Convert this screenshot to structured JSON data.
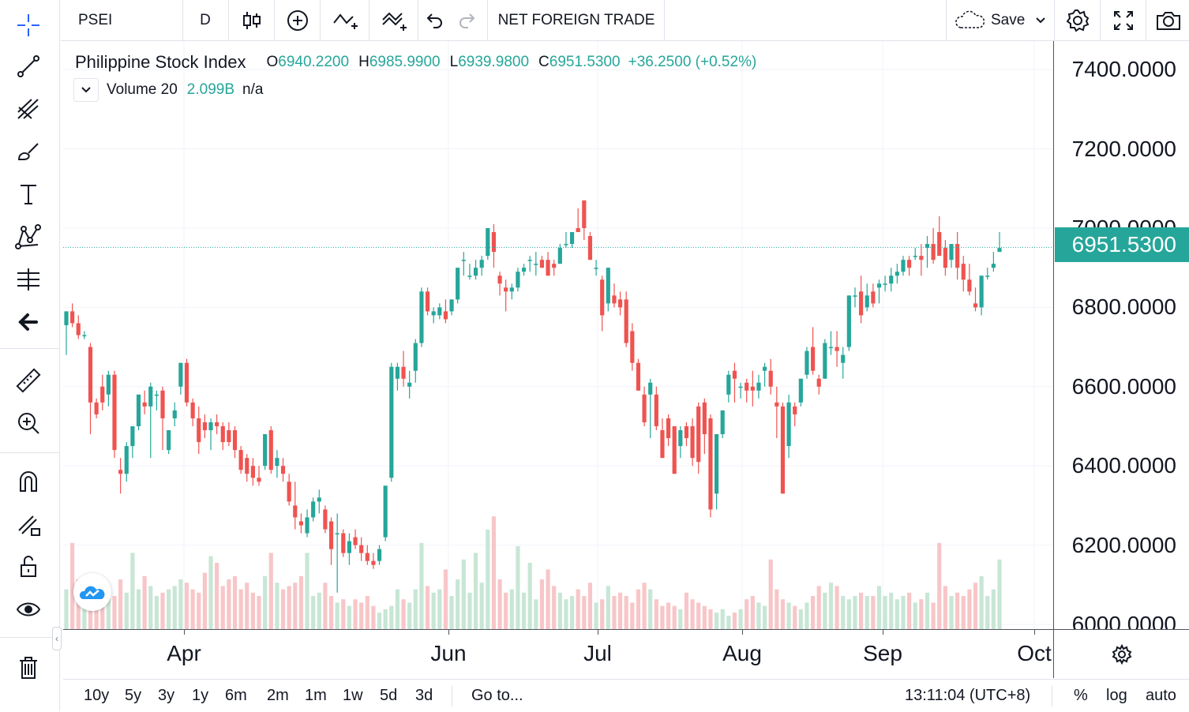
{
  "toolbar": {
    "symbol": "PSEI",
    "interval": "D",
    "indicator_label": "NET FOREIGN TRADE",
    "save_label": "Save"
  },
  "legend": {
    "name": "Philippine Stock Index",
    "o_label": "O",
    "o_value": "6940.2200",
    "h_label": "H",
    "h_value": "6985.9900",
    "l_label": "L",
    "l_value": "6939.9800",
    "c_label": "C",
    "c_value": "6951.5300",
    "change": "+36.2500 (+0.52%)",
    "volume_label": "Volume 20",
    "volume_value": "2.099B",
    "volume_na": "n/a"
  },
  "colors": {
    "up": "#26a69a",
    "down": "#ef5350",
    "up_vol": "#c8e6d5",
    "down_vol": "#f8c6c8"
  },
  "last_price": "6951.5300",
  "bottom_bar": {
    "ranges": [
      "10y",
      "5y",
      "3y",
      "1y",
      "6m",
      "2m",
      "1m",
      "1w",
      "5d",
      "3d"
    ],
    "goto_label": "Go to...",
    "time": "13:11:04 (UTC+8)",
    "pct": "%",
    "log": "log",
    "auto": "auto"
  },
  "chart_data": {
    "type": "candlestick",
    "title": "Philippine Stock Index",
    "y_ticks": [
      "7400.0000",
      "7200.0000",
      "7000.0000",
      "6800.0000",
      "6600.0000",
      "6400.0000",
      "6200.0000",
      "6000.0000"
    ],
    "ylim": [
      5990,
      7450
    ],
    "x_labels": [
      "Apr",
      "Jun",
      "Jul",
      "Aug",
      "Sep",
      "Oct"
    ],
    "last_close_line": 6951.53,
    "candles": [
      [
        6755,
        6790,
        6680,
        6790,
        1.2
      ],
      [
        6790,
        6810,
        6750,
        6760,
        2.6
      ],
      [
        6760,
        6780,
        6720,
        6730,
        1.5
      ],
      [
        6730,
        6740,
        6720,
        6730,
        1.1
      ],
      [
        6700,
        6710,
        6480,
        6560,
        1.4
      ],
      [
        6560,
        6570,
        6520,
        6530,
        1.2
      ],
      [
        6600,
        6630,
        6540,
        6560,
        1.1
      ],
      [
        6580,
        6640,
        6550,
        6630,
        1.3
      ],
      [
        6630,
        6640,
        6420,
        6440,
        1.0
      ],
      [
        6390,
        6420,
        6330,
        6380,
        1.5
      ],
      [
        6380,
        6460,
        6360,
        6450,
        1.1
      ],
      [
        6450,
        6500,
        6420,
        6500,
        2.3
      ],
      [
        6500,
        6580,
        6490,
        6580,
        1.2
      ],
      [
        6560,
        6590,
        6530,
        6550,
        1.6
      ],
      [
        6550,
        6610,
        6420,
        6600,
        1.3
      ],
      [
        6580,
        6590,
        6540,
        6580,
        1.0
      ],
      [
        6590,
        6600,
        6440,
        6520,
        1.1
      ],
      [
        6440,
        6490,
        6430,
        6490,
        1.2
      ],
      [
        6520,
        6560,
        6500,
        6540,
        1.3
      ],
      [
        6600,
        6660,
        6580,
        6660,
        1.5
      ],
      [
        6660,
        6670,
        6550,
        6560,
        1.4
      ],
      [
        6560,
        6570,
        6500,
        6520,
        1.2
      ],
      [
        6520,
        6550,
        6430,
        6460,
        1.1
      ],
      [
        6510,
        6530,
        6470,
        6490,
        1.7
      ],
      [
        6490,
        6520,
        6440,
        6510,
        2.2
      ],
      [
        6510,
        6530,
        6480,
        6500,
        2.0
      ],
      [
        6500,
        6510,
        6440,
        6460,
        1.3
      ],
      [
        6490,
        6510,
        6450,
        6460,
        1.5
      ],
      [
        6490,
        6500,
        6420,
        6440,
        1.6
      ],
      [
        6440,
        6450,
        6380,
        6390,
        1.2
      ],
      [
        6420,
        6430,
        6360,
        6380,
        1.4
      ],
      [
        6400,
        6420,
        6350,
        6370,
        1.1
      ],
      [
        6370,
        6400,
        6350,
        6360,
        1.0
      ],
      [
        6400,
        6480,
        6390,
        6480,
        1.6
      ],
      [
        6490,
        6500,
        6380,
        6390,
        2.3
      ],
      [
        6400,
        6440,
        6370,
        6420,
        1.4
      ],
      [
        6400,
        6420,
        6360,
        6380,
        1.2
      ],
      [
        6360,
        6380,
        6300,
        6310,
        1.3
      ],
      [
        6300,
        6360,
        6240,
        6270,
        1.4
      ],
      [
        6260,
        6280,
        6230,
        6250,
        1.6
      ],
      [
        6230,
        6290,
        6220,
        6270,
        2.3
      ],
      [
        6270,
        6320,
        6260,
        6310,
        1.0
      ],
      [
        6310,
        6340,
        6280,
        6320,
        1.1
      ],
      [
        6290,
        6300,
        6230,
        6240,
        1.4
      ],
      [
        6260,
        6270,
        6150,
        6190,
        1.0
      ],
      [
        6230,
        6280,
        6080,
        6230,
        0.8
      ],
      [
        6230,
        6240,
        6170,
        6180,
        0.9
      ],
      [
        6180,
        6230,
        6150,
        6210,
        0.7
      ],
      [
        6220,
        6240,
        6190,
        6200,
        0.9
      ],
      [
        6200,
        6220,
        6160,
        6180,
        0.8
      ],
      [
        6180,
        6200,
        6150,
        6160,
        1.0
      ],
      [
        6160,
        6180,
        6140,
        6150,
        0.7
      ],
      [
        6160,
        6200,
        6150,
        6190,
        0.5
      ],
      [
        6220,
        6350,
        6210,
        6350,
        0.6
      ],
      [
        6370,
        6660,
        6360,
        6650,
        0.7
      ],
      [
        6620,
        6660,
        6590,
        6650,
        1.2
      ],
      [
        6650,
        6690,
        6600,
        6620,
        0.9
      ],
      [
        6600,
        6640,
        6570,
        6610,
        0.8
      ],
      [
        6640,
        6720,
        6610,
        6710,
        1.2
      ],
      [
        6710,
        6850,
        6700,
        6840,
        2.6
      ],
      [
        6840,
        6850,
        6780,
        6790,
        1.3
      ],
      [
        6780,
        6800,
        6760,
        6790,
        1.1
      ],
      [
        6780,
        6810,
        6770,
        6800,
        1.2
      ],
      [
        6790,
        6820,
        6760,
        6770,
        1.8
      ],
      [
        6790,
        6820,
        6780,
        6820,
        1.0
      ],
      [
        6820,
        6900,
        6810,
        6900,
        1.5
      ],
      [
        6920,
        6940,
        6880,
        6920,
        2.1
      ],
      [
        6880,
        6910,
        6870,
        6880,
        1.1
      ],
      [
        6880,
        6920,
        6870,
        6900,
        2.3
      ],
      [
        6900,
        6930,
        6880,
        6920,
        1.4
      ],
      [
        6930,
        7000,
        6920,
        7000,
        3.0
      ],
      [
        6990,
        7010,
        6900,
        6940,
        3.4
      ],
      [
        6880,
        6890,
        6830,
        6860,
        1.5
      ],
      [
        6850,
        6870,
        6790,
        6840,
        1.1
      ],
      [
        6840,
        6860,
        6820,
        6850,
        1.2
      ],
      [
        6850,
        6900,
        6840,
        6890,
        2.5
      ],
      [
        6890,
        6910,
        6880,
        6900,
        1.1
      ],
      [
        6920,
        6930,
        6890,
        6920,
        2.0
      ],
      [
        6910,
        6940,
        6880,
        6910,
        0.9
      ],
      [
        6920,
        6930,
        6900,
        6900,
        1.5
      ],
      [
        6920,
        6940,
        6880,
        6880,
        1.8
      ],
      [
        6910,
        6920,
        6880,
        6900,
        1.3
      ],
      [
        6910,
        6960,
        6910,
        6950,
        1.1
      ],
      [
        6960,
        6990,
        6950,
        6960,
        0.9
      ],
      [
        6960,
        6990,
        6950,
        6990,
        1.0
      ],
      [
        7000,
        7050,
        6990,
        6990,
        1.2
      ],
      [
        7070,
        7070,
        6970,
        7000,
        1.0
      ],
      [
        6980,
        6990,
        6920,
        6920,
        1.4
      ],
      [
        6900,
        6920,
        6880,
        6900,
        0.8
      ],
      [
        6870,
        6880,
        6740,
        6780,
        0.9
      ],
      [
        6810,
        6900,
        6790,
        6900,
        1.3
      ],
      [
        6830,
        6860,
        6800,
        6810,
        1.0
      ],
      [
        6820,
        6840,
        6780,
        6800,
        1.1
      ],
      [
        6820,
        6840,
        6700,
        6710,
        1.0
      ],
      [
        6740,
        6760,
        6640,
        6660,
        0.8
      ],
      [
        6660,
        6670,
        6590,
        6590,
        1.2
      ],
      [
        6580,
        6600,
        6500,
        6510,
        1.4
      ],
      [
        6580,
        6620,
        6470,
        6610,
        1.2
      ],
      [
        6580,
        6600,
        6490,
        6500,
        0.9
      ],
      [
        6490,
        6520,
        6420,
        6420,
        0.7
      ],
      [
        6520,
        6530,
        6450,
        6470,
        0.8
      ],
      [
        6500,
        6500,
        6380,
        6380,
        0.7
      ],
      [
        6450,
        6500,
        6420,
        6490,
        0.6
      ],
      [
        6500,
        6510,
        6450,
        6470,
        1.1
      ],
      [
        6500,
        6520,
        6400,
        6420,
        0.9
      ],
      [
        6550,
        6560,
        6380,
        6410,
        0.8
      ],
      [
        6560,
        6570,
        6430,
        6480,
        0.7
      ],
      [
        6520,
        6530,
        6270,
        6290,
        0.6
      ],
      [
        6330,
        6480,
        6290,
        6480,
        0.5
      ],
      [
        6480,
        6540,
        6470,
        6540,
        0.6
      ],
      [
        6580,
        6640,
        6560,
        6630,
        0.4
      ],
      [
        6640,
        6660,
        6560,
        6620,
        0.5
      ],
      [
        6600,
        6610,
        6570,
        6600,
        0.6
      ],
      [
        6610,
        6620,
        6560,
        6590,
        0.9
      ],
      [
        6600,
        6640,
        6550,
        6590,
        1.0
      ],
      [
        6590,
        6630,
        6570,
        6610,
        0.8
      ],
      [
        6640,
        6660,
        6600,
        6650,
        0.7
      ],
      [
        6640,
        6670,
        6580,
        6600,
        2.1
      ],
      [
        6560,
        6600,
        6470,
        6550,
        1.2
      ],
      [
        6550,
        6560,
        6330,
        6330,
        0.9
      ],
      [
        6450,
        6580,
        6420,
        6560,
        0.8
      ],
      [
        6550,
        6560,
        6500,
        6530,
        0.7
      ],
      [
        6560,
        6620,
        6550,
        6620,
        0.6
      ],
      [
        6630,
        6700,
        6620,
        6690,
        0.8
      ],
      [
        6700,
        6750,
        6630,
        6640,
        1.0
      ],
      [
        6620,
        6630,
        6580,
        6600,
        1.3
      ],
      [
        6620,
        6720,
        6620,
        6710,
        1.1
      ],
      [
        6700,
        6740,
        6680,
        6700,
        1.4
      ],
      [
        6700,
        6740,
        6650,
        6690,
        1.3
      ],
      [
        6660,
        6700,
        6620,
        6680,
        1.0
      ],
      [
        6700,
        6830,
        6690,
        6830,
        0.9
      ],
      [
        6830,
        6850,
        6800,
        6830,
        1.0
      ],
      [
        6840,
        6880,
        6760,
        6780,
        1.1
      ],
      [
        6800,
        6860,
        6790,
        6830,
        1.0
      ],
      [
        6840,
        6860,
        6800,
        6810,
        1.0
      ],
      [
        6850,
        6870,
        6810,
        6860,
        1.3
      ],
      [
        6860,
        6880,
        6840,
        6860,
        1.0
      ],
      [
        6860,
        6900,
        6840,
        6880,
        1.1
      ],
      [
        6880,
        6910,
        6860,
        6890,
        0.9
      ],
      [
        6890,
        6930,
        6880,
        6920,
        1.0
      ],
      [
        6920,
        6930,
        6880,
        6900,
        1.1
      ],
      [
        6930,
        6950,
        6920,
        6930,
        0.8
      ],
      [
        6930,
        6960,
        6880,
        6920,
        0.9
      ],
      [
        6950,
        6980,
        6900,
        6960,
        1.1
      ],
      [
        6960,
        7000,
        6910,
        6920,
        0.8
      ],
      [
        6990,
        7030,
        6930,
        6930,
        2.6
      ],
      [
        6950,
        6970,
        6880,
        6900,
        1.3
      ],
      [
        6920,
        6960,
        6900,
        6960,
        1.0
      ],
      [
        6960,
        6990,
        6870,
        6900,
        1.1
      ],
      [
        6910,
        6930,
        6840,
        6870,
        1.0
      ],
      [
        6870,
        6910,
        6830,
        6840,
        1.2
      ],
      [
        6810,
        6850,
        6790,
        6800,
        1.4
      ],
      [
        6800,
        6880,
        6780,
        6880,
        1.6
      ],
      [
        6880,
        6900,
        6870,
        6880,
        1.0
      ],
      [
        6900,
        6940,
        6890,
        6910,
        1.2
      ],
      [
        6940,
        6990,
        6940,
        6950,
        2.1
      ]
    ]
  }
}
